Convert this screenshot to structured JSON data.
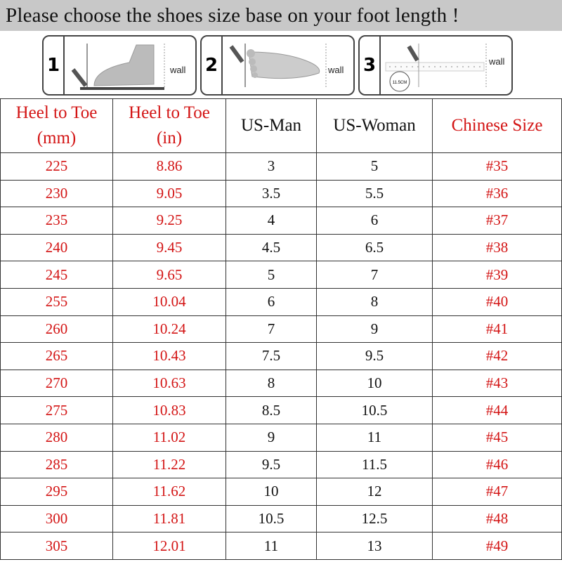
{
  "title": "Please choose the shoes size base on your foot length !",
  "steps": [
    {
      "number": "1",
      "wall_label": "wall",
      "icon": "foot-side-measure-icon"
    },
    {
      "number": "2",
      "wall_label": "wall",
      "icon": "foot-top-measure-icon"
    },
    {
      "number": "3",
      "wall_label": "wall",
      "icon": "ruler-measure-icon",
      "badge": "11.5CM"
    }
  ],
  "colors": {
    "header_red": "#d31414",
    "title_bg": "#c8c8c8"
  },
  "table": {
    "headers": [
      {
        "line1": "Heel to Toe",
        "line2": "(mm)"
      },
      {
        "line1": "Heel to Toe",
        "line2": "(in)"
      },
      {
        "line1": "US-Man",
        "line2": ""
      },
      {
        "line1": "US-Woman",
        "line2": ""
      },
      {
        "line1": "Chinese Size",
        "line2": ""
      }
    ],
    "rows": [
      [
        "225",
        "8.86",
        "3",
        "5",
        "#35"
      ],
      [
        "230",
        "9.05",
        "3.5",
        "5.5",
        "#36"
      ],
      [
        "235",
        "9.25",
        "4",
        "6",
        "#37"
      ],
      [
        "240",
        "9.45",
        "4.5",
        "6.5",
        "#38"
      ],
      [
        "245",
        "9.65",
        "5",
        "7",
        "#39"
      ],
      [
        "255",
        "10.04",
        "6",
        "8",
        "#40"
      ],
      [
        "260",
        "10.24",
        "7",
        "9",
        "#41"
      ],
      [
        "265",
        "10.43",
        "7.5",
        "9.5",
        "#42"
      ],
      [
        "270",
        "10.63",
        "8",
        "10",
        "#43"
      ],
      [
        "275",
        "10.83",
        "8.5",
        "10.5",
        "#44"
      ],
      [
        "280",
        "11.02",
        "9",
        "11",
        "#45"
      ],
      [
        "285",
        "11.22",
        "9.5",
        "11.5",
        "#46"
      ],
      [
        "295",
        "11.62",
        "10",
        "12",
        "#47"
      ],
      [
        "300",
        "11.81",
        "10.5",
        "12.5",
        "#48"
      ],
      [
        "305",
        "12.01",
        "11",
        "13",
        "#49"
      ]
    ]
  }
}
